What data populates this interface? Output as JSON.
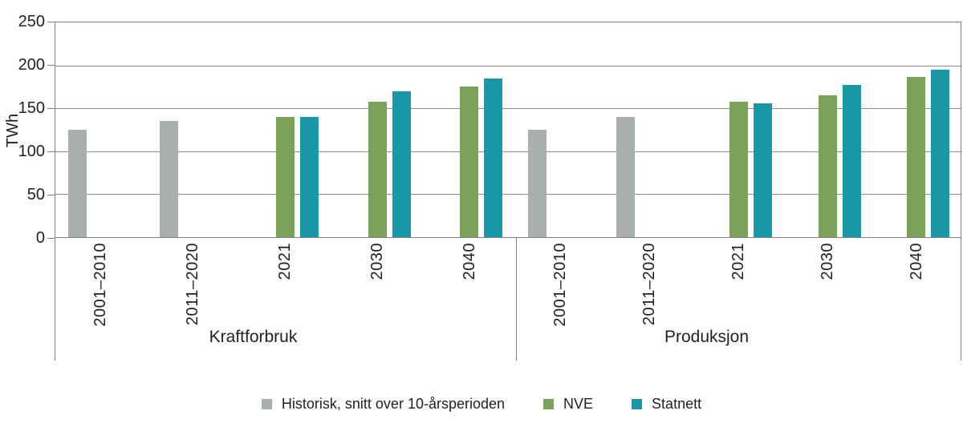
{
  "chart_data": {
    "type": "bar",
    "title": "",
    "ylabel": "TWh",
    "ylim": [
      0,
      250
    ],
    "yticks": [
      250,
      200,
      150,
      100,
      50,
      0
    ],
    "grid": true,
    "legend_position": "bottom",
    "series": [
      {
        "name": "Historisk, snitt over 10-årsperioden",
        "color": "#A9AFAD"
      },
      {
        "name": "NVE",
        "color": "#7CA158"
      },
      {
        "name": "Statnett",
        "color": "#1B98A8"
      }
    ],
    "groups": [
      {
        "label": "Kraftforbruk",
        "categories": [
          "2001–2010",
          "2011–2020",
          "2021",
          "2030",
          "2040"
        ],
        "values": [
          [
            125,
            135,
            null,
            null,
            null
          ],
          [
            null,
            null,
            140,
            158,
            175
          ],
          [
            null,
            null,
            140,
            170,
            185
          ]
        ]
      },
      {
        "label": "Produksjon",
        "categories": [
          "2001–2010",
          "2011–2020",
          "2021",
          "2030",
          "2040"
        ],
        "values": [
          [
            125,
            140,
            null,
            null,
            null
          ],
          [
            null,
            null,
            158,
            165,
            187
          ],
          [
            null,
            null,
            156,
            177,
            195
          ]
        ]
      }
    ]
  }
}
